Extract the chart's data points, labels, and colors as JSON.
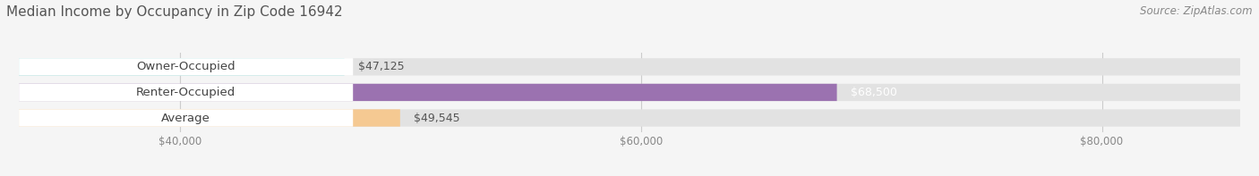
{
  "title": "Median Income by Occupancy in Zip Code 16942",
  "source": "Source: ZipAtlas.com",
  "categories": [
    "Owner-Occupied",
    "Renter-Occupied",
    "Average"
  ],
  "values": [
    47125,
    68500,
    49545
  ],
  "bar_colors": [
    "#6ecfcc",
    "#9b72b0",
    "#f5c992"
  ],
  "value_labels": [
    "$47,125",
    "$68,500",
    "$49,545"
  ],
  "value_label_colors": [
    "#555555",
    "#ffffff",
    "#555555"
  ],
  "x_ticks": [
    40000,
    60000,
    80000
  ],
  "x_tick_labels": [
    "$40,000",
    "$60,000",
    "$80,000"
  ],
  "x_min": 33000,
  "x_max": 86000,
  "background_color": "#f5f5f5",
  "bar_bg_color": "#e2e2e2",
  "bar_height": 0.52,
  "title_fontsize": 11,
  "source_fontsize": 8.5,
  "label_fontsize": 9.5,
  "value_fontsize": 9,
  "tick_fontsize": 8.5
}
